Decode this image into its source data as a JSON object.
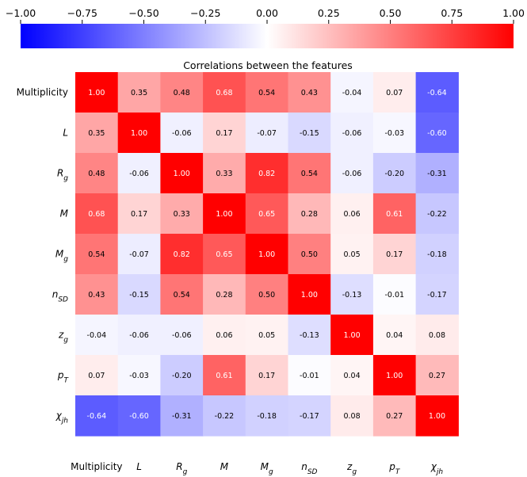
{
  "chart_data": {
    "type": "heatmap",
    "title": "Correlations between the features",
    "features": [
      {
        "base": "Multiplicity",
        "sub": ""
      },
      {
        "base": "L",
        "sub": ""
      },
      {
        "base": "R",
        "sub": "g"
      },
      {
        "base": "M",
        "sub": ""
      },
      {
        "base": "M",
        "sub": "g"
      },
      {
        "base": "n",
        "sub": "SD"
      },
      {
        "base": "z",
        "sub": "g"
      },
      {
        "base": "p",
        "sub": "T"
      },
      {
        "base": "χ",
        "sub": "jh"
      }
    ],
    "matrix": [
      [
        1.0,
        0.35,
        0.48,
        0.68,
        0.54,
        0.43,
        -0.04,
        0.07,
        -0.64
      ],
      [
        0.35,
        1.0,
        -0.06,
        0.17,
        -0.07,
        -0.15,
        -0.06,
        -0.03,
        -0.6
      ],
      [
        0.48,
        -0.06,
        1.0,
        0.33,
        0.82,
        0.54,
        -0.06,
        -0.2,
        -0.31
      ],
      [
        0.68,
        0.17,
        0.33,
        1.0,
        0.65,
        0.28,
        0.06,
        0.61,
        -0.22
      ],
      [
        0.54,
        -0.07,
        0.82,
        0.65,
        1.0,
        0.5,
        0.05,
        0.17,
        -0.18
      ],
      [
        0.43,
        -0.15,
        0.54,
        0.28,
        0.5,
        1.0,
        -0.13,
        -0.01,
        -0.17
      ],
      [
        -0.04,
        -0.06,
        -0.06,
        0.06,
        0.05,
        -0.13,
        1.0,
        0.04,
        0.08
      ],
      [
        0.07,
        -0.03,
        -0.2,
        0.61,
        0.17,
        -0.01,
        0.04,
        1.0,
        0.27
      ],
      [
        -0.64,
        -0.6,
        -0.31,
        -0.22,
        -0.18,
        -0.17,
        0.08,
        0.27,
        1.0
      ]
    ],
    "colorbar": {
      "orientation": "horizontal",
      "placement": "top",
      "range": [
        -1.0,
        1.0
      ],
      "ticks": [
        -1.0,
        -0.75,
        -0.5,
        -0.25,
        0.0,
        0.25,
        0.5,
        0.75,
        1.0
      ],
      "tick_labels": [
        "−1.00",
        "−0.75",
        "−0.50",
        "−0.25",
        "0.00",
        "0.25",
        "0.50",
        "0.75",
        "1.00"
      ],
      "colormap": "bwr"
    },
    "colors": {
      "low": "#0000ff",
      "mid": "#ffffff",
      "high": "#ff0000"
    }
  }
}
